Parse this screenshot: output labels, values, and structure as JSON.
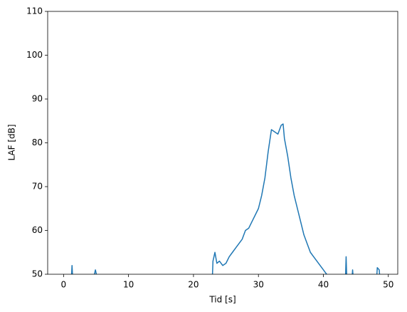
{
  "chart_data": {
    "type": "line",
    "xlabel": "Tid [s]",
    "ylabel": "LAF [dB]",
    "color": "#1f77b4",
    "x": [
      1.2,
      1.3,
      1.4,
      3,
      4.6,
      4.9,
      5.2,
      14,
      22.9,
      23.0,
      23.3,
      23.6,
      24,
      24.5,
      25,
      25.5,
      26,
      26.5,
      27,
      27.5,
      28,
      28.5,
      29,
      29.5,
      30,
      30.5,
      31,
      31.5,
      32,
      32.5,
      33,
      33.5,
      33.8,
      34,
      34.5,
      35,
      35.5,
      36,
      36.5,
      37,
      37.5,
      38,
      38.5,
      39,
      39.5,
      40,
      40.5,
      41,
      42,
      43.4,
      43.5,
      43.6,
      44,
      44.4,
      44.5,
      44.6,
      46,
      48.2,
      48.3,
      48.6,
      48.7
    ],
    "values": [
      49,
      52,
      49,
      null,
      49,
      51,
      49,
      null,
      49,
      53,
      55,
      52.5,
      53,
      52,
      52.5,
      54,
      55,
      56,
      57,
      58,
      60,
      60.5,
      62,
      63.5,
      65,
      68,
      72,
      78,
      83,
      82.5,
      82,
      84,
      84.3,
      81,
      77,
      72,
      68,
      65,
      62,
      59,
      57,
      55,
      54,
      53,
      52,
      51,
      50,
      49,
      null,
      49,
      54,
      49,
      null,
      49,
      51,
      49,
      null,
      49,
      51.5,
      51,
      49
    ],
    "xlim": [
      -2.45,
      51.45
    ],
    "ylim": [
      50,
      110
    ],
    "xticks": [
      0,
      10,
      20,
      30,
      40,
      50
    ],
    "yticks": [
      50,
      60,
      70,
      80,
      90,
      100,
      110
    ]
  }
}
